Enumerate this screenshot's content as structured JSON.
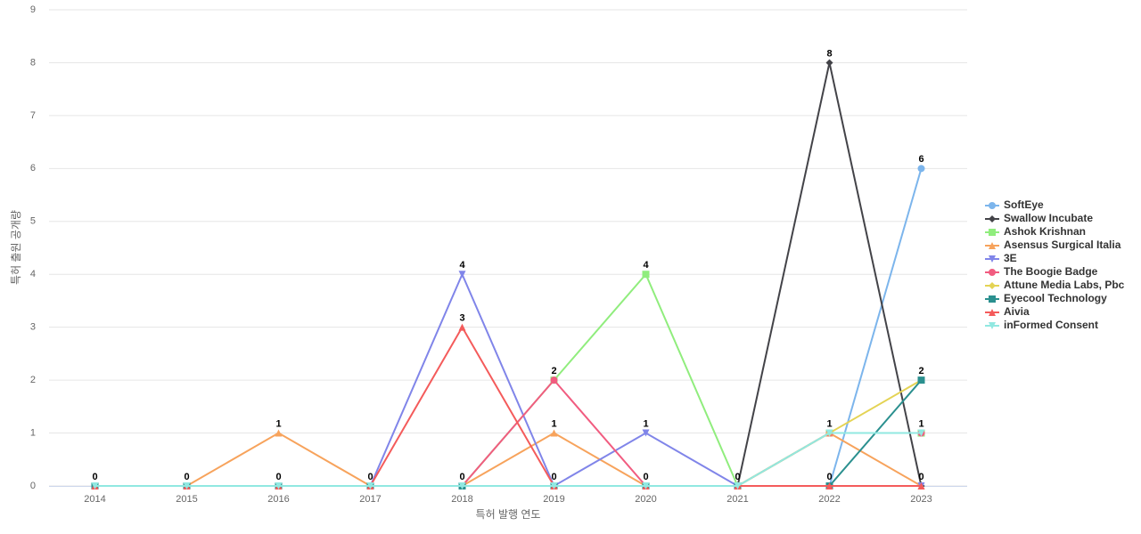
{
  "chart_data": {
    "type": "line",
    "x_label": "특허 발행 연도",
    "y_label": "특허 출원 공개량",
    "categories": [
      "2014",
      "2015",
      "2016",
      "2017",
      "2018",
      "2019",
      "2020",
      "2021",
      "2022",
      "2023"
    ],
    "ylim": [
      0,
      9
    ],
    "yticks": [
      0,
      1,
      2,
      3,
      4,
      5,
      6,
      7,
      8,
      9
    ],
    "grid": true,
    "legend": "right",
    "series": [
      {
        "name": "SoftEye",
        "color": "#7cb5ec",
        "values": [
          0,
          0,
          0,
          0,
          0,
          0,
          0,
          0,
          0,
          6
        ]
      },
      {
        "name": "Swallow Incubate",
        "color": "#434348",
        "values": [
          0,
          0,
          0,
          0,
          0,
          0,
          0,
          0,
          8,
          0
        ]
      },
      {
        "name": "Ashok Krishnan",
        "color": "#90ed7d",
        "values": [
          0,
          0,
          0,
          0,
          0,
          2,
          4,
          0,
          1,
          1
        ]
      },
      {
        "name": "Asensus Surgical Italia",
        "color": "#f7a35c",
        "values": [
          0,
          0,
          1,
          0,
          0,
          1,
          0,
          0,
          1,
          0
        ]
      },
      {
        "name": "3E",
        "color": "#8085e9",
        "values": [
          0,
          0,
          0,
          0,
          4,
          0,
          1,
          0,
          0,
          0
        ]
      },
      {
        "name": "The Boogie Badge",
        "color": "#f15c80",
        "values": [
          0,
          0,
          0,
          0,
          0,
          2,
          0,
          0,
          1,
          1
        ]
      },
      {
        "name": "Attune Media Labs, Pbc",
        "color": "#e4d354",
        "values": [
          0,
          0,
          0,
          0,
          0,
          0,
          0,
          0,
          1,
          2
        ]
      },
      {
        "name": "Eyecool Technology",
        "color": "#2b908f",
        "values": [
          0,
          0,
          0,
          0,
          0,
          0,
          0,
          0,
          0,
          2
        ]
      },
      {
        "name": "Aivia",
        "color": "#f45b5b",
        "values": [
          0,
          0,
          0,
          0,
          3,
          0,
          0,
          0,
          0,
          0
        ]
      },
      {
        "name": "inFormed Consent",
        "color": "#91e8e1",
        "values": [
          0,
          0,
          0,
          0,
          0,
          0,
          0,
          0,
          1,
          1
        ]
      }
    ]
  }
}
